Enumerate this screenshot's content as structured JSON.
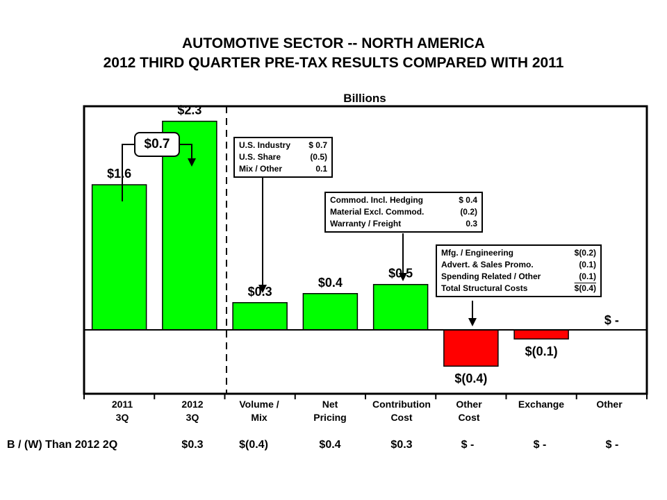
{
  "title_line1": "AUTOMOTIVE SECTOR -- NORTH AMERICA",
  "title_line2": "2012 THIRD QUARTER PRE-TAX RESULTS COMPARED WITH 2011",
  "chart_data": {
    "type": "bar",
    "subtype": "waterfall",
    "units": "Billions",
    "ylim": [
      -0.8,
      2.7
    ],
    "categories": [
      [
        "2011",
        "3Q"
      ],
      [
        "2012",
        "3Q"
      ],
      [
        "Volume /",
        "Mix"
      ],
      [
        "Net",
        "Pricing"
      ],
      [
        "Contribution",
        "Cost"
      ],
      [
        "Other",
        "Cost"
      ],
      [
        "Exchange",
        ""
      ],
      [
        "Other",
        ""
      ]
    ],
    "values": [
      1.6,
      2.3,
      0.3,
      0.4,
      0.5,
      -0.4,
      -0.1,
      0
    ],
    "value_labels": [
      "$1.6",
      "$2.3",
      "$0.3",
      "$0.4",
      "$0.5",
      "$(0.4)",
      "$(0.1)",
      "$ -"
    ],
    "colors": {
      "positive": "#00ff00",
      "negative": "#ff0000"
    },
    "change_badge": "$0.7",
    "annotations": {
      "volume_mix": [
        [
          "U.S. Industry",
          "$ 0.7"
        ],
        [
          "U.S. Share",
          "(0.5)"
        ],
        [
          "Mix / Other",
          "0.1"
        ]
      ],
      "contribution_cost": [
        [
          "Commod. Incl. Hedging",
          "$ 0.4"
        ],
        [
          "Material Excl. Commod.",
          "(0.2)"
        ],
        [
          "Warranty / Freight",
          "0.3"
        ]
      ],
      "other_cost": [
        [
          "Mfg. / Engineering",
          "$(0.2)"
        ],
        [
          "Advert. & Sales Promo.",
          "(0.1)"
        ],
        [
          "Spending Related / Other",
          "(0.1)"
        ],
        [
          "Total Structural Costs",
          "$(0.4)"
        ]
      ]
    }
  },
  "bw_row": {
    "label": "B / (W) Than 2012 2Q",
    "values": [
      "$0.3",
      "$(0.4)",
      "$0.4",
      "$0.3",
      "$ -",
      "$ -",
      "$ -"
    ]
  }
}
